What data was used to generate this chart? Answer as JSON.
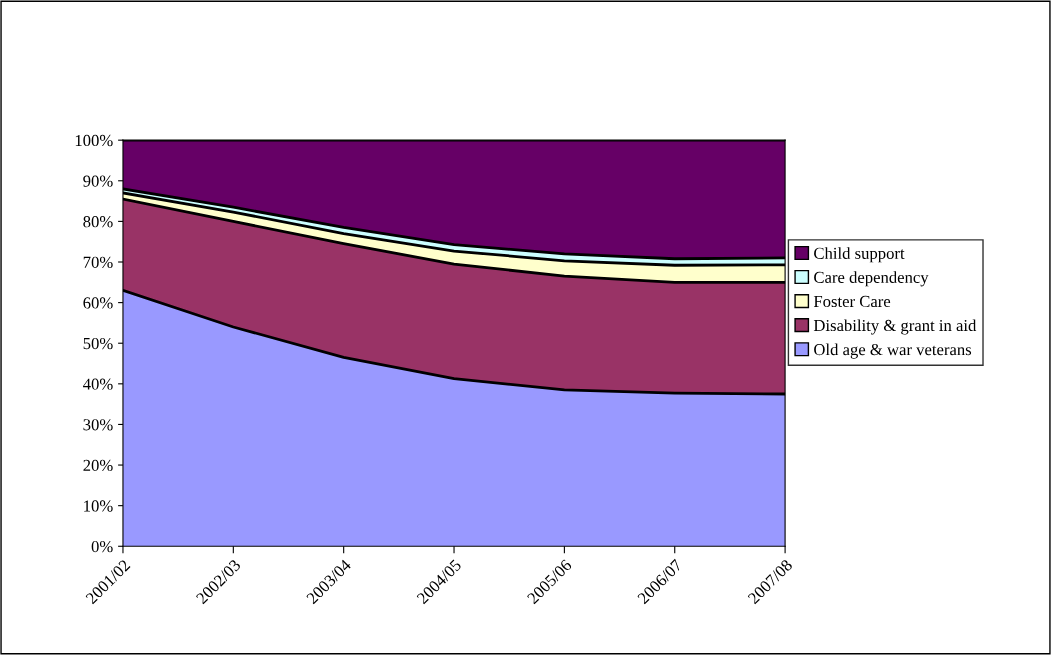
{
  "chart_data": {
    "type": "area",
    "stacked": true,
    "categories": [
      "2001/02",
      "2002/03",
      "2003/04",
      "2004/05",
      "2005/06",
      "2006/07",
      "2007/08"
    ],
    "series": [
      {
        "name": "Old age & war veterans",
        "color": "#9999ff",
        "values": [
          63,
          54,
          46.5,
          41.3,
          38.5,
          37.7,
          37.5
        ]
      },
      {
        "name": "Disability & grant in aid",
        "color": "#993366",
        "values": [
          22.5,
          26,
          28,
          28.2,
          28,
          27.3,
          27.5
        ]
      },
      {
        "name": "Foster Care",
        "color": "#ffffcc",
        "values": [
          1.5,
          2.3,
          2.5,
          3.2,
          3.8,
          4.2,
          4.3
        ]
      },
      {
        "name": "Care dependency",
        "color": "#ccffff",
        "values": [
          1,
          1.2,
          1.5,
          1.6,
          1.7,
          1.6,
          1.7
        ]
      },
      {
        "name": "Child support",
        "color": "#660066",
        "values": [
          12,
          16.5,
          21.5,
          25.7,
          28,
          29.2,
          29
        ]
      }
    ],
    "ylim": [
      0,
      100
    ],
    "yticks": [
      {
        "value": 0,
        "label": "0%"
      },
      {
        "value": 10,
        "label": "10%"
      },
      {
        "value": 20,
        "label": "20%"
      },
      {
        "value": 30,
        "label": "30%"
      },
      {
        "value": 40,
        "label": "40%"
      },
      {
        "value": 50,
        "label": "50%"
      },
      {
        "value": 60,
        "label": "60%"
      },
      {
        "value": 70,
        "label": "70%"
      },
      {
        "value": 80,
        "label": "80%"
      },
      {
        "value": 90,
        "label": "90%"
      },
      {
        "value": 100,
        "label": "100%"
      }
    ],
    "legend": "right",
    "grid": false
  }
}
